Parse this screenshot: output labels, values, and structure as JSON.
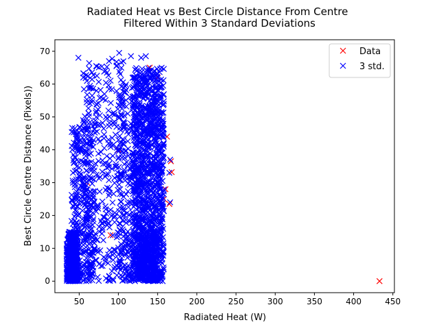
{
  "chart_data": {
    "type": "scatter",
    "title_line1": "Radiated Heat vs Best Circle Distance From Centre",
    "title_line2": "Filtered Within 3 Standard Deviations",
    "xlabel": "Radiated Heat (W)",
    "ylabel": "Best Circle Centre Distance (Pixels))",
    "xlim": [
      19,
      452
    ],
    "ylim": [
      -3.5,
      73.5
    ],
    "xticks": [
      50,
      100,
      150,
      200,
      250,
      300,
      350,
      400,
      450
    ],
    "yticks": [
      0,
      10,
      20,
      30,
      40,
      50,
      60,
      70
    ],
    "grid": false,
    "legend_position": "top-right",
    "marker": "x",
    "series": [
      {
        "name": "Data",
        "color": "#ff0000",
        "points": [
          [
            433,
            0
          ],
          [
            167,
            36.5
          ],
          [
            168,
            33.2
          ],
          [
            165,
            23.5
          ],
          [
            160,
            28.0
          ],
          [
            158,
            25.0
          ],
          [
            162,
            44.0
          ],
          [
            150,
            62.0
          ],
          [
            140,
            65.0
          ],
          [
            130,
            58.0
          ],
          [
            60,
            30.0
          ],
          [
            90,
            14.0
          ],
          [
            120,
            8.0
          ],
          [
            145,
            4.0
          ],
          [
            100,
            40.0
          ]
        ]
      },
      {
        "name": "3 std.",
        "color": "#0000ff",
        "point_count_estimate": 3000,
        "clusters": [
          {
            "x": [
              34,
              48
            ],
            "y": [
              0,
              15
            ],
            "n": 600
          },
          {
            "x": [
              40,
              70
            ],
            "y": [
              0,
              47
            ],
            "n": 330
          },
          {
            "x": [
              55,
              110
            ],
            "y": [
              0,
              68
            ],
            "n": 360
          },
          {
            "x": [
              100,
              120
            ],
            "y": [
              0,
              60
            ],
            "n": 180
          },
          {
            "x": [
              118,
              158
            ],
            "y": [
              0,
              65
            ],
            "n": 1300
          },
          {
            "x": [
              125,
              150
            ],
            "y": [
              0,
              15
            ],
            "n": 300
          }
        ],
        "notable_points": [
          [
            49,
            68
          ],
          [
            101,
            69.5
          ],
          [
            116,
            68.5
          ],
          [
            88,
            67
          ],
          [
            135,
            68.5
          ],
          [
            129,
            68
          ],
          [
            165,
            33
          ],
          [
            166,
            24
          ],
          [
            166,
            37
          ]
        ]
      }
    ]
  }
}
